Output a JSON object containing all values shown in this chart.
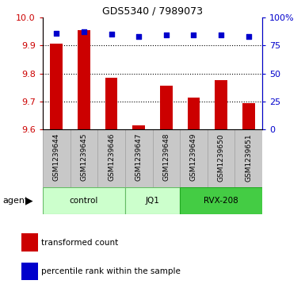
{
  "title": "GDS5340 / 7989073",
  "samples": [
    "GSM1239644",
    "GSM1239645",
    "GSM1239646",
    "GSM1239647",
    "GSM1239648",
    "GSM1239649",
    "GSM1239650",
    "GSM1239651"
  ],
  "bar_values": [
    9.905,
    9.955,
    9.785,
    9.615,
    9.755,
    9.715,
    9.775,
    9.695
  ],
  "percentile_values": [
    86,
    87,
    85,
    83,
    84,
    84,
    84,
    83
  ],
  "bar_color": "#cc0000",
  "percentile_color": "#0000cc",
  "ylim_left": [
    9.6,
    10.0
  ],
  "ylim_right": [
    0,
    100
  ],
  "yticks_left": [
    9.6,
    9.7,
    9.8,
    9.9,
    10.0
  ],
  "yticks_right": [
    0,
    25,
    50,
    75,
    100
  ],
  "groups": [
    {
      "label": "control",
      "start": 0,
      "end": 3,
      "color": "#ccffcc",
      "edge": "#66bb66"
    },
    {
      "label": "JQ1",
      "start": 3,
      "end": 5,
      "color": "#ccffcc",
      "edge": "#66bb66"
    },
    {
      "label": "RVX-208",
      "start": 5,
      "end": 8,
      "color": "#44cc44",
      "edge": "#22aa22"
    }
  ],
  "agent_label": "agent",
  "legend_bar_label": "transformed count",
  "legend_dot_label": "percentile rank within the sample",
  "bar_base": 9.6,
  "cell_bg": "#c8c8c8",
  "cell_edge": "#aaaaaa",
  "tick_color_left": "#cc0000",
  "tick_color_right": "#0000cc",
  "grid_lines": [
    9.7,
    9.8,
    9.9
  ],
  "bar_width": 0.45
}
